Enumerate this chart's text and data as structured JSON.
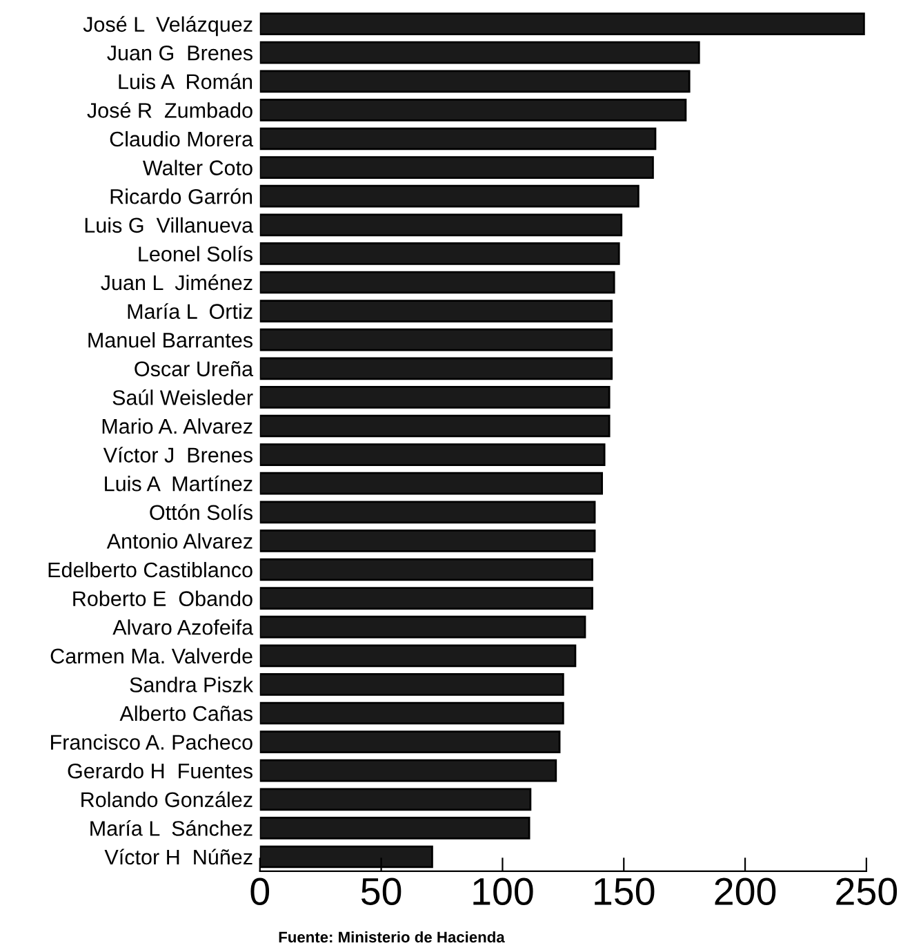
{
  "chart_data": {
    "type": "bar",
    "orientation": "horizontal",
    "categories": [
      "José L  Velázquez",
      "Juan G  Brenes",
      "Luis A  Román",
      "José R  Zumbado",
      "Claudio Morera",
      "Walter Coto",
      "Ricardo Garrón",
      "Luis G  Villanueva",
      "Leonel Solís",
      "Juan L  Jiménez",
      "María L  Ortiz",
      "Manuel Barrantes",
      "Oscar Ureña",
      "Saúl Weisleder",
      "Mario A. Alvarez",
      "Víctor J  Brenes",
      "Luis A  Martínez",
      "Ottón Solís",
      "Antonio Alvarez",
      "Edelberto Castiblanco",
      "Roberto E  Obando",
      "Alvaro Azofeifa",
      "Carmen Ma. Valverde",
      "Sandra Piszk",
      "Alberto Cañas",
      "Francisco A. Pacheco",
      "Gerardo H  Fuentes",
      "Rolando González",
      "María L  Sánchez",
      "Víctor H  Núñez"
    ],
    "values": [
      249,
      181,
      177,
      175.5,
      163,
      162,
      156,
      149,
      148,
      146,
      145,
      145,
      145,
      144,
      144,
      142,
      141,
      138,
      138,
      137,
      137,
      134,
      130,
      125,
      125,
      123.5,
      122,
      111.5,
      111,
      71
    ],
    "color": "#1a1a1a",
    "xlim": [
      0,
      250
    ],
    "xticks": [
      0,
      50,
      100,
      150,
      200,
      250
    ],
    "grid": false,
    "annotations": [
      "Fuente: Ministerio de Hacienda"
    ]
  }
}
